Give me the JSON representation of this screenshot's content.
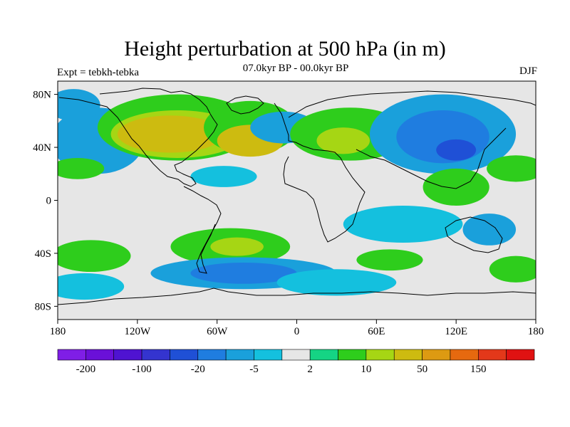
{
  "figure": {
    "title": "Height perturbation at 500 hPa (in m)",
    "subtitle": "07.0kyr BP - 00.0kyr BP",
    "left_label": "Expt = tebkh-tebka",
    "right_label": "DJF"
  },
  "axes": {
    "lon_ticks": [
      "180",
      "120W",
      "60W",
      "0",
      "60E",
      "120E",
      "180"
    ],
    "lat_ticks": [
      "80N",
      "40N",
      "0",
      "40S",
      "80S"
    ]
  },
  "colorbar": {
    "colors": [
      "#7f1ee6",
      "#6a10d8",
      "#4f13d1",
      "#3434cf",
      "#1f50d6",
      "#1f7de0",
      "#1aa0db",
      "#14c0de",
      "#e6e6e6",
      "#15d484",
      "#2ecd1c",
      "#a6d614",
      "#cdbb10",
      "#dd9a12",
      "#e6690f",
      "#e3381a",
      "#e01212"
    ],
    "labels": [
      "-200",
      "-100",
      "-20",
      "-5",
      "2",
      "10",
      "50",
      "150"
    ]
  },
  "chart_data": {
    "type": "heatmap",
    "title": "Height perturbation at 500 hPa (in m)",
    "subtitle": "07.0kyr BP - 00.0kyr BP",
    "xlabel": "",
    "ylabel": "",
    "xlim": [
      -180,
      180
    ],
    "ylim": [
      -90,
      90
    ],
    "x_ticks": [
      "180",
      "120W",
      "60W",
      "0",
      "60E",
      "120E",
      "180"
    ],
    "y_ticks": [
      "80N",
      "40N",
      "0",
      "40S",
      "80S"
    ],
    "levels": [
      -200,
      -100,
      -20,
      -5,
      2,
      10,
      50,
      150
    ],
    "features": [
      {
        "lon": -160,
        "lat": 42,
        "lon_radius": 22,
        "lat_radius": 12,
        "level": 4
      },
      {
        "lon": -150,
        "lat": 45,
        "lon_radius": 35,
        "lat_radius": 25,
        "level": 6
      },
      {
        "lon": -168,
        "lat": 72,
        "lon_radius": 20,
        "lat_radius": 12,
        "level": 6
      },
      {
        "lon": -165,
        "lat": 24,
        "lon_radius": 20,
        "lat_radius": 8,
        "level": 10
      },
      {
        "lon": -90,
        "lat": 55,
        "lon_radius": 60,
        "lat_radius": 25,
        "level": 10
      },
      {
        "lon": -90,
        "lat": 50,
        "lon_radius": 50,
        "lat_radius": 18,
        "level": 11
      },
      {
        "lon": -95,
        "lat": 50,
        "lon_radius": 40,
        "lat_radius": 14,
        "level": 12
      },
      {
        "lon": -35,
        "lat": 55,
        "lon_radius": 35,
        "lat_radius": 20,
        "level": 10
      },
      {
        "lon": -35,
        "lat": 45,
        "lon_radius": 25,
        "lat_radius": 12,
        "level": 12
      },
      {
        "lon": -10,
        "lat": 55,
        "lon_radius": 25,
        "lat_radius": 12,
        "level": 6
      },
      {
        "lon": 40,
        "lat": 50,
        "lon_radius": 45,
        "lat_radius": 20,
        "level": 10
      },
      {
        "lon": 35,
        "lat": 45,
        "lon_radius": 20,
        "lat_radius": 10,
        "level": 11
      },
      {
        "lon": 110,
        "lat": 50,
        "lon_radius": 55,
        "lat_radius": 30,
        "level": 6
      },
      {
        "lon": 110,
        "lat": 48,
        "lon_radius": 35,
        "lat_radius": 20,
        "level": 5
      },
      {
        "lon": 120,
        "lat": 38,
        "lon_radius": 15,
        "lat_radius": 8,
        "level": 4
      },
      {
        "lon": 165,
        "lat": 24,
        "lon_radius": 22,
        "lat_radius": 10,
        "level": 10
      },
      {
        "lon": -55,
        "lat": 18,
        "lon_radius": 25,
        "lat_radius": 8,
        "level": 7
      },
      {
        "lon": 120,
        "lat": 10,
        "lon_radius": 25,
        "lat_radius": 14,
        "level": 10
      },
      {
        "lon": 80,
        "lat": -18,
        "lon_radius": 45,
        "lat_radius": 14,
        "level": 7
      },
      {
        "lon": 145,
        "lat": -22,
        "lon_radius": 20,
        "lat_radius": 12,
        "level": 6
      },
      {
        "lon": -155,
        "lat": -42,
        "lon_radius": 30,
        "lat_radius": 12,
        "level": 10
      },
      {
        "lon": -50,
        "lat": -35,
        "lon_radius": 45,
        "lat_radius": 14,
        "level": 10
      },
      {
        "lon": -45,
        "lat": -35,
        "lon_radius": 20,
        "lat_radius": 7,
        "level": 11
      },
      {
        "lon": 70,
        "lat": -45,
        "lon_radius": 25,
        "lat_radius": 8,
        "level": 10
      },
      {
        "lon": 165,
        "lat": -52,
        "lon_radius": 20,
        "lat_radius": 10,
        "level": 10
      },
      {
        "lon": -40,
        "lat": -55,
        "lon_radius": 70,
        "lat_radius": 12,
        "level": 6
      },
      {
        "lon": -40,
        "lat": -55,
        "lon_radius": 40,
        "lat_radius": 8,
        "level": 5
      },
      {
        "lon": 30,
        "lat": -62,
        "lon_radius": 45,
        "lat_radius": 10,
        "level": 7
      },
      {
        "lon": -160,
        "lat": -65,
        "lon_radius": 30,
        "lat_radius": 10,
        "level": 7
      }
    ]
  }
}
